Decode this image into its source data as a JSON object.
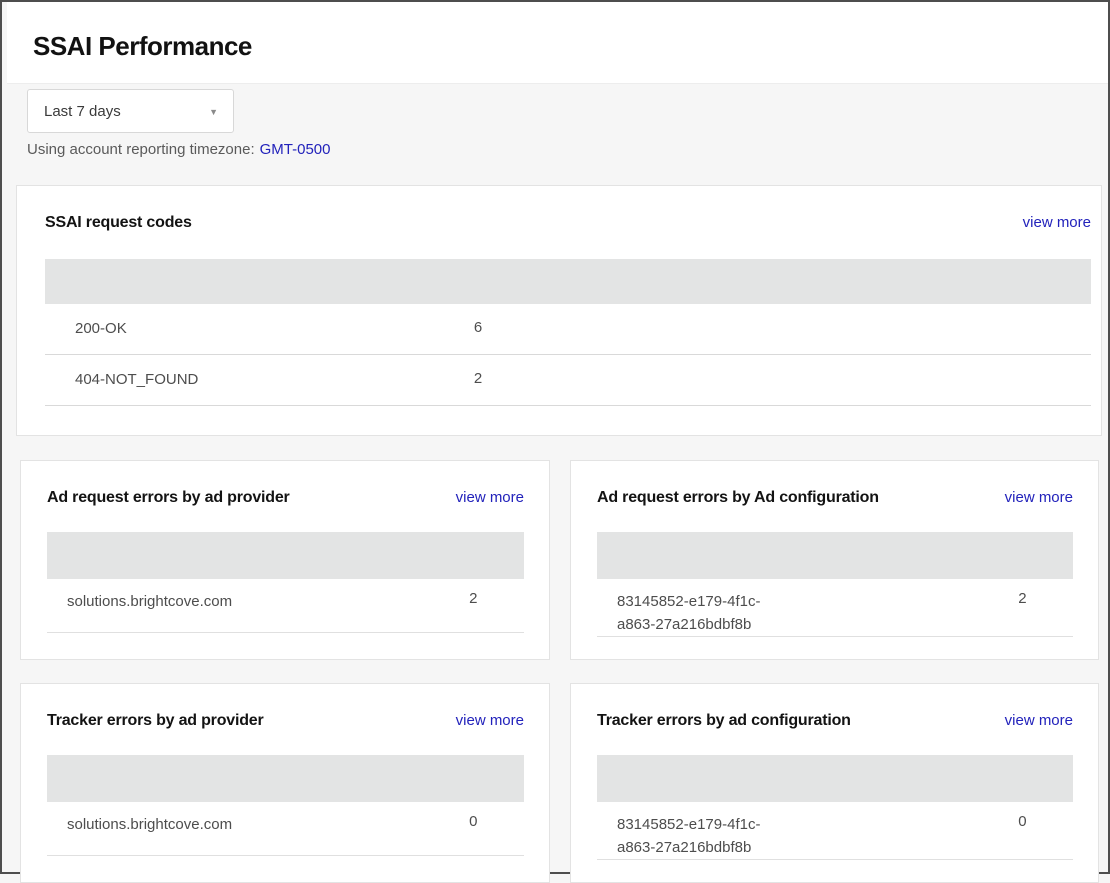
{
  "header": {
    "title": "SSAI Performance"
  },
  "filters": {
    "date_range": {
      "value": "Last 7 days",
      "icon": "▼"
    },
    "timezone_label": "Using account reporting timezone:",
    "timezone_value": "GMT-0500"
  },
  "labels": {
    "view_more": "view more"
  },
  "colors": {
    "link": "#2222bb",
    "table_header_bar": "#e3e4e4",
    "page_background": "#f6f6f6",
    "card_background": "#ffffff",
    "row_text": "#4d4d4d",
    "title_text": "#121212"
  },
  "cards": [
    {
      "title": "SSAI request codes",
      "rows": [
        {
          "label": "200-OK",
          "value": "6"
        },
        {
          "label": "404-NOT_FOUND",
          "value": "2"
        }
      ]
    },
    {
      "title": "Ad request errors by ad provider",
      "rows": [
        {
          "label": "solutions.brightcove.com",
          "value": "2"
        }
      ]
    },
    {
      "title": "Ad request errors by Ad configuration",
      "rows": [
        {
          "label": "83145852-e179-4f1c-a863-27a216bdbf8b",
          "value": "2"
        }
      ]
    },
    {
      "title": "Tracker errors by ad provider",
      "rows": [
        {
          "label": "solutions.brightcove.com",
          "value": "0"
        }
      ]
    },
    {
      "title": "Tracker errors by ad configuration",
      "rows": [
        {
          "label": "83145852-e179-4f1c-a863-27a216bdbf8b",
          "value": "0"
        }
      ]
    }
  ]
}
